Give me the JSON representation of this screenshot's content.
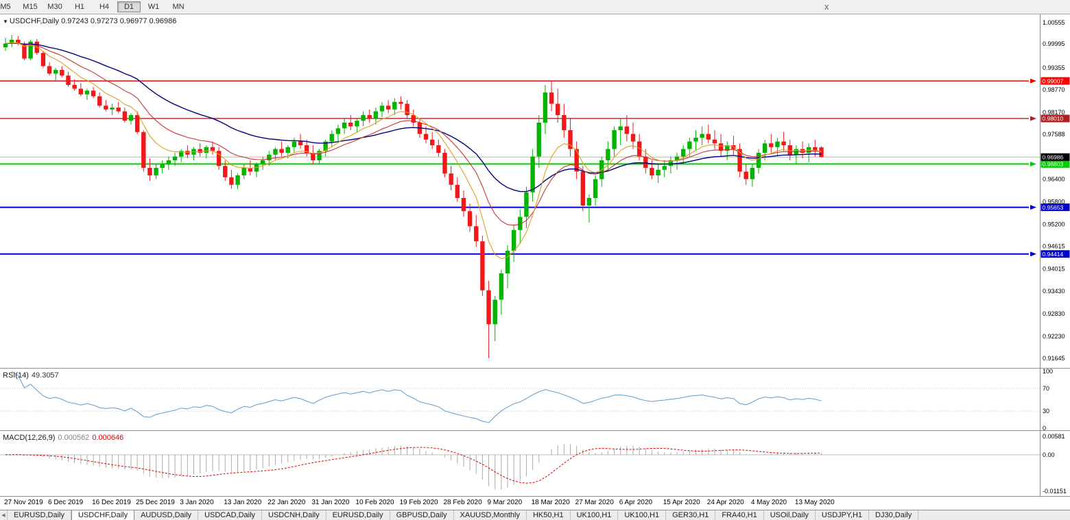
{
  "toolbar": {
    "timeframes": [
      {
        "label": "M5",
        "active": false
      },
      {
        "label": "M15",
        "active": false
      },
      {
        "label": "M30",
        "active": false
      },
      {
        "label": "H1",
        "active": false
      },
      {
        "label": "H4",
        "active": false
      },
      {
        "label": "D1",
        "active": true
      },
      {
        "label": "W1",
        "active": false
      },
      {
        "label": "MN",
        "active": false
      }
    ],
    "close_label": "x"
  },
  "main_chart": {
    "title_text": "USDCHF,Daily 0.97243 0.97273 0.96977 0.96986",
    "open": "0.97243",
    "high": "0.97273",
    "low": "0.96977",
    "close": "0.96986"
  },
  "chart_data": {
    "type": "candlestick",
    "symbol": "USDCHF",
    "timeframe": "Daily",
    "up_color": "#00b400",
    "down_color": "#f01818",
    "current_price": "0.96986",
    "y_range": {
      "top_price": 1.00555,
      "bottom_price": 0.91645
    },
    "y_axis_labels": [
      "1.00555",
      "0.99995",
      "0.99355",
      "0.98770",
      "0.98170",
      "0.97588",
      "0.97000",
      "0.96400",
      "0.95800",
      "0.95200",
      "0.94615",
      "0.94015",
      "0.93430",
      "0.92830",
      "0.92230",
      "0.91645"
    ],
    "horizontal_lines": [
      {
        "price": "0.99007",
        "color": "#ff0000",
        "width": 1.4
      },
      {
        "price": "0.98010",
        "color": "#b02020",
        "width": 1.4
      },
      {
        "price": "0.96803",
        "color": "#00cc00",
        "width": 2
      },
      {
        "price": "0.95653",
        "color": "#0000d0",
        "width": 2
      },
      {
        "price": "0.94414",
        "color": "#0000d0",
        "width": 2
      }
    ],
    "moving_averages": [
      {
        "period": 34,
        "color": "#000080",
        "width": 1.4
      },
      {
        "period": 16,
        "color": "#cc3333",
        "width": 1.1
      },
      {
        "period": 8,
        "color": "#e0a020",
        "width": 1.1
      }
    ],
    "x_label_step": 7,
    "x_labels": [
      "27 Nov 2019",
      "6 Dec 2019",
      "16 Dec 2019",
      "25 Dec 2019",
      "3 Jan 2020",
      "13 Jan 2020",
      "22 Jan 2020",
      "31 Jan 2020",
      "10 Feb 2020",
      "19 Feb 2020",
      "28 Feb 2020",
      "9 Mar 2020",
      "18 Mar 2020",
      "27 Mar 2020",
      "6 Apr 2020",
      "15 Apr 2020",
      "24 Apr 2020",
      "4 May 2020",
      "13 May 2020"
    ],
    "candles": [
      [
        0.999,
        1.0015,
        0.998,
        1.0
      ],
      [
        1.0,
        1.0023,
        0.999,
        1.001
      ],
      [
        1.001,
        1.002,
        0.9995,
        1.0
      ],
      [
        1.0,
        1.0005,
        0.9955,
        0.996
      ],
      [
        0.996,
        1.001,
        0.9955,
        1.0005
      ],
      [
        1.0005,
        1.0012,
        0.997,
        0.9975
      ],
      [
        0.9975,
        0.998,
        0.9935,
        0.994
      ],
      [
        0.994,
        0.995,
        0.9915,
        0.992
      ],
      [
        0.992,
        0.9935,
        0.99,
        0.993
      ],
      [
        0.993,
        0.994,
        0.991,
        0.9915
      ],
      [
        0.9915,
        0.9925,
        0.9885,
        0.989
      ],
      [
        0.989,
        0.9905,
        0.9875,
        0.988
      ],
      [
        0.988,
        0.9895,
        0.986,
        0.9865
      ],
      [
        0.9865,
        0.988,
        0.985,
        0.9875
      ],
      [
        0.9875,
        0.9885,
        0.9855,
        0.986
      ],
      [
        0.986,
        0.987,
        0.983,
        0.9835
      ],
      [
        0.9835,
        0.985,
        0.982,
        0.9825
      ],
      [
        0.9825,
        0.984,
        0.981,
        0.983
      ],
      [
        0.983,
        0.9845,
        0.9815,
        0.982
      ],
      [
        0.982,
        0.983,
        0.979,
        0.9795
      ],
      [
        0.9795,
        0.9815,
        0.9785,
        0.981
      ],
      [
        0.981,
        0.982,
        0.976,
        0.9765
      ],
      [
        0.9765,
        0.977,
        0.966,
        0.967
      ],
      [
        0.967,
        0.9695,
        0.9635,
        0.965
      ],
      [
        0.965,
        0.968,
        0.964,
        0.967
      ],
      [
        0.967,
        0.969,
        0.9655,
        0.968
      ],
      [
        0.968,
        0.97,
        0.9665,
        0.969
      ],
      [
        0.969,
        0.971,
        0.9675,
        0.97
      ],
      [
        0.97,
        0.972,
        0.9685,
        0.9715
      ],
      [
        0.9715,
        0.973,
        0.9695,
        0.9705
      ],
      [
        0.9705,
        0.9725,
        0.969,
        0.972
      ],
      [
        0.972,
        0.9735,
        0.97,
        0.971
      ],
      [
        0.971,
        0.973,
        0.9695,
        0.9725
      ],
      [
        0.9725,
        0.974,
        0.9705,
        0.9715
      ],
      [
        0.9715,
        0.9725,
        0.9665,
        0.9675
      ],
      [
        0.9675,
        0.969,
        0.9635,
        0.9645
      ],
      [
        0.9645,
        0.9665,
        0.9615,
        0.9625
      ],
      [
        0.9625,
        0.9655,
        0.9613,
        0.965
      ],
      [
        0.965,
        0.968,
        0.964,
        0.967
      ],
      [
        0.967,
        0.969,
        0.965,
        0.966
      ],
      [
        0.966,
        0.9685,
        0.9645,
        0.968
      ],
      [
        0.968,
        0.97,
        0.9665,
        0.969
      ],
      [
        0.969,
        0.9715,
        0.9675,
        0.9705
      ],
      [
        0.9705,
        0.9725,
        0.969,
        0.972
      ],
      [
        0.972,
        0.974,
        0.97,
        0.971
      ],
      [
        0.971,
        0.973,
        0.9695,
        0.9725
      ],
      [
        0.9725,
        0.975,
        0.971,
        0.974
      ],
      [
        0.974,
        0.976,
        0.972,
        0.973
      ],
      [
        0.973,
        0.9745,
        0.97,
        0.971
      ],
      [
        0.971,
        0.973,
        0.968,
        0.969
      ],
      [
        0.969,
        0.972,
        0.968,
        0.9715
      ],
      [
        0.9715,
        0.9745,
        0.97,
        0.974
      ],
      [
        0.974,
        0.977,
        0.9725,
        0.976
      ],
      [
        0.976,
        0.9785,
        0.974,
        0.9775
      ],
      [
        0.9775,
        0.98,
        0.976,
        0.979
      ],
      [
        0.979,
        0.981,
        0.977,
        0.978
      ],
      [
        0.978,
        0.98,
        0.9765,
        0.9795
      ],
      [
        0.9795,
        0.982,
        0.978,
        0.981
      ],
      [
        0.981,
        0.9825,
        0.979,
        0.98
      ],
      [
        0.98,
        0.983,
        0.9785,
        0.982
      ],
      [
        0.982,
        0.9845,
        0.9805,
        0.9835
      ],
      [
        0.9835,
        0.985,
        0.9815,
        0.9825
      ],
      [
        0.9825,
        0.9855,
        0.981,
        0.9845
      ],
      [
        0.9845,
        0.986,
        0.9825,
        0.984
      ],
      [
        0.984,
        0.985,
        0.98,
        0.981
      ],
      [
        0.981,
        0.9825,
        0.978,
        0.979
      ],
      [
        0.979,
        0.98,
        0.975,
        0.976
      ],
      [
        0.976,
        0.978,
        0.9735,
        0.9745
      ],
      [
        0.9745,
        0.9765,
        0.972,
        0.973
      ],
      [
        0.973,
        0.9745,
        0.97,
        0.971
      ],
      [
        0.971,
        0.972,
        0.9645,
        0.9655
      ],
      [
        0.9655,
        0.9675,
        0.961,
        0.9625
      ],
      [
        0.9625,
        0.9645,
        0.958,
        0.959
      ],
      [
        0.959,
        0.961,
        0.954,
        0.9555
      ],
      [
        0.9555,
        0.9575,
        0.95,
        0.9515
      ],
      [
        0.9515,
        0.9545,
        0.946,
        0.9475
      ],
      [
        0.9475,
        0.949,
        0.933,
        0.9345
      ],
      [
        0.9345,
        0.937,
        0.9165,
        0.9255
      ],
      [
        0.9255,
        0.933,
        0.921,
        0.932
      ],
      [
        0.932,
        0.94,
        0.928,
        0.939
      ],
      [
        0.939,
        0.9465,
        0.935,
        0.945
      ],
      [
        0.945,
        0.952,
        0.942,
        0.9505
      ],
      [
        0.9505,
        0.956,
        0.947,
        0.954
      ],
      [
        0.954,
        0.962,
        0.951,
        0.9605
      ],
      [
        0.9605,
        0.972,
        0.958,
        0.97
      ],
      [
        0.97,
        0.981,
        0.967,
        0.979
      ],
      [
        0.979,
        0.989,
        0.976,
        0.987
      ],
      [
        0.987,
        0.9901,
        0.982,
        0.984
      ],
      [
        0.984,
        0.988,
        0.979,
        0.981
      ],
      [
        0.981,
        0.984,
        0.975,
        0.977
      ],
      [
        0.977,
        0.98,
        0.97,
        0.972
      ],
      [
        0.972,
        0.974,
        0.964,
        0.966
      ],
      [
        0.966,
        0.9675,
        0.9555,
        0.957
      ],
      [
        0.957,
        0.96,
        0.9525,
        0.959
      ],
      [
        0.959,
        0.965,
        0.957,
        0.964
      ],
      [
        0.964,
        0.97,
        0.962,
        0.969
      ],
      [
        0.969,
        0.974,
        0.966,
        0.972
      ],
      [
        0.972,
        0.978,
        0.97,
        0.977
      ],
      [
        0.977,
        0.98,
        0.973,
        0.978
      ],
      [
        0.978,
        0.981,
        0.974,
        0.976
      ],
      [
        0.976,
        0.979,
        0.972,
        0.974
      ],
      [
        0.974,
        0.976,
        0.969,
        0.97
      ],
      [
        0.97,
        0.972,
        0.9655,
        0.967
      ],
      [
        0.967,
        0.969,
        0.964,
        0.965
      ],
      [
        0.965,
        0.968,
        0.963,
        0.9665
      ],
      [
        0.9665,
        0.969,
        0.9645,
        0.9675
      ],
      [
        0.9675,
        0.97,
        0.9655,
        0.969
      ],
      [
        0.969,
        0.971,
        0.9665,
        0.97
      ],
      [
        0.97,
        0.973,
        0.968,
        0.972
      ],
      [
        0.972,
        0.975,
        0.97,
        0.974
      ],
      [
        0.974,
        0.977,
        0.9715,
        0.975
      ],
      [
        0.975,
        0.978,
        0.973,
        0.976
      ],
      [
        0.976,
        0.9785,
        0.9735,
        0.9745
      ],
      [
        0.9745,
        0.977,
        0.972,
        0.9735
      ],
      [
        0.9735,
        0.976,
        0.97,
        0.9715
      ],
      [
        0.9715,
        0.974,
        0.969,
        0.973
      ],
      [
        0.973,
        0.9755,
        0.9705,
        0.972
      ],
      [
        0.972,
        0.9735,
        0.9645,
        0.966
      ],
      [
        0.966,
        0.968,
        0.9625,
        0.964
      ],
      [
        0.964,
        0.968,
        0.962,
        0.967
      ],
      [
        0.967,
        0.972,
        0.9655,
        0.971
      ],
      [
        0.971,
        0.9745,
        0.969,
        0.9735
      ],
      [
        0.9735,
        0.976,
        0.971,
        0.9725
      ],
      [
        0.9725,
        0.975,
        0.97,
        0.974
      ],
      [
        0.974,
        0.9765,
        0.9715,
        0.973
      ],
      [
        0.973,
        0.9745,
        0.969,
        0.9705
      ],
      [
        0.9705,
        0.973,
        0.968,
        0.972
      ],
      [
        0.972,
        0.974,
        0.9695,
        0.971
      ],
      [
        0.971,
        0.9735,
        0.9685,
        0.9725
      ],
      [
        0.9725,
        0.9745,
        0.97,
        0.9715
      ],
      [
        0.97243,
        0.97273,
        0.96977,
        0.96986
      ]
    ]
  },
  "rsi_panel": {
    "label": "RSI(14)",
    "value": "49.3057",
    "levels": [
      "100",
      "70",
      "30",
      "0"
    ],
    "line_color": "#5f9ad0"
  },
  "macd_panel": {
    "label": "MACD(12,26,9)",
    "macd_value": "0.000562",
    "signal_value": "0.000646",
    "axis_labels": [
      "0.00581",
      "0.00",
      "-0.01151"
    ],
    "histogram_color": "#aaaaaa",
    "signal_color": "#e00000"
  },
  "tab_bar": {
    "tabs": [
      {
        "label": "EURUSD,Daily",
        "active": false
      },
      {
        "label": "USDCHF,Daily",
        "active": true
      },
      {
        "label": "AUDUSD,Daily",
        "active": false
      },
      {
        "label": "USDCAD,Daily",
        "active": false
      },
      {
        "label": "USDCNH,Daily",
        "active": false
      },
      {
        "label": "EURUSD,Daily",
        "active": false
      },
      {
        "label": "GBPUSD,Daily",
        "active": false
      },
      {
        "label": "XAUUSD,Monthly",
        "active": false
      },
      {
        "label": "HK50,H1",
        "active": false
      },
      {
        "label": "UK100,H1",
        "active": false
      },
      {
        "label": "UK100,H1",
        "active": false
      },
      {
        "label": "GER30,H1",
        "active": false
      },
      {
        "label": "FRA40,H1",
        "active": false
      },
      {
        "label": "USOil,Daily",
        "active": false
      },
      {
        "label": "USDJPY,H1",
        "active": false
      },
      {
        "label": "DJ30,Daily",
        "active": false
      }
    ]
  }
}
